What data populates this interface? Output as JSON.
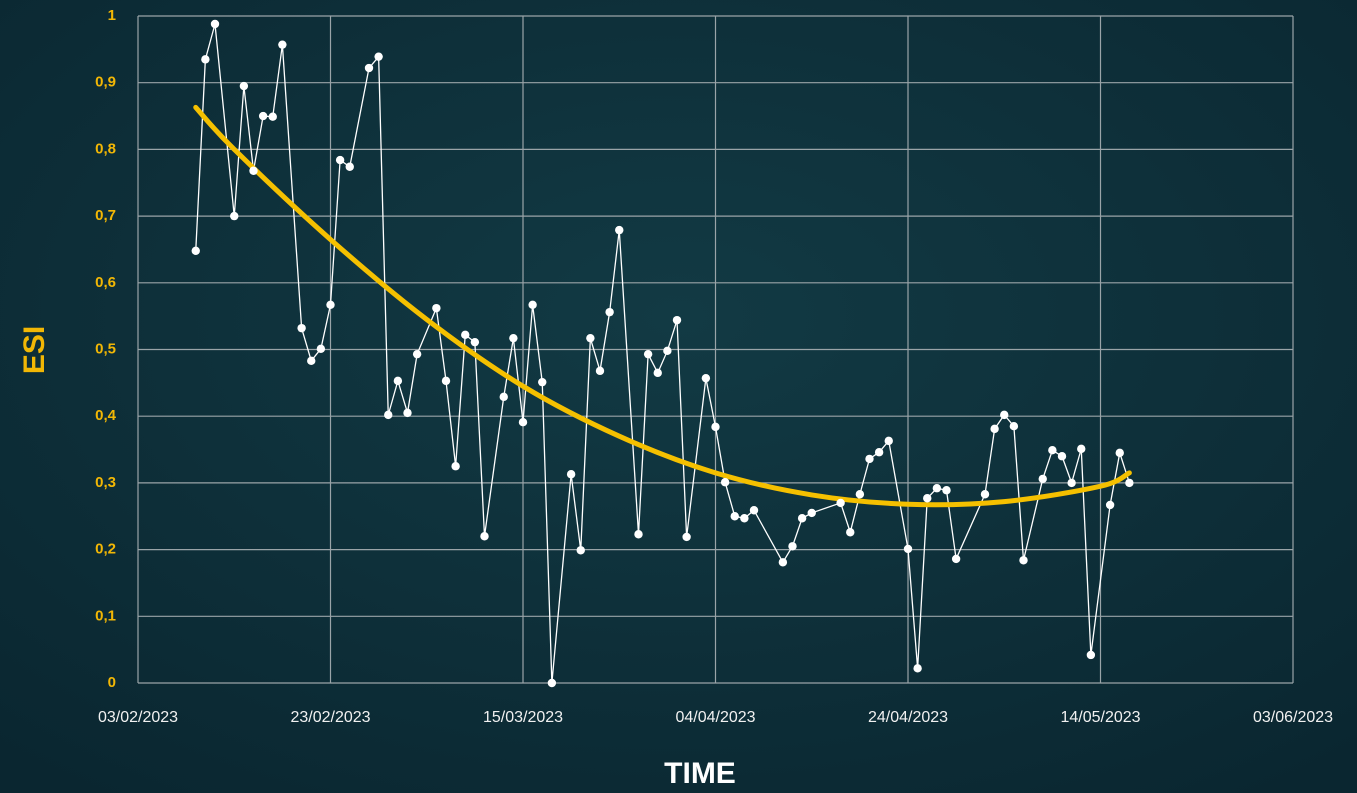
{
  "chart_data": {
    "type": "line",
    "x_label": "TIME",
    "y_label": "ESI",
    "xlim": [
      "03/02/2023",
      "03/06/2023"
    ],
    "xticks": [
      "03/02/2023",
      "23/02/2023",
      "15/03/2023",
      "04/04/2023",
      "24/04/2023",
      "14/05/2023",
      "03/06/2023"
    ],
    "ylim": [
      0,
      1
    ],
    "yticks": [
      0,
      {
        "value": 0.1,
        "label": "0,1"
      },
      {
        "value": 0.2,
        "label": "0,2"
      },
      {
        "value": 0.3,
        "label": "0,3"
      },
      {
        "value": 0.4,
        "label": "0,4"
      },
      {
        "value": 0.5,
        "label": "0,5"
      },
      {
        "value": 0.6,
        "label": "0,6"
      },
      {
        "value": 0.7,
        "label": "0,7"
      },
      {
        "value": 0.8,
        "label": "0,8"
      },
      {
        "value": 0.9,
        "label": "0,9"
      },
      1
    ],
    "grid": true,
    "x": [
      "09/02/2023",
      "10/02/2023",
      "11/02/2023",
      "13/02/2023",
      "14/02/2023",
      "15/02/2023",
      "16/02/2023",
      "17/02/2023",
      "18/02/2023",
      "20/02/2023",
      "21/02/2023",
      "22/02/2023",
      "23/02/2023",
      "24/02/2023",
      "25/02/2023",
      "27/02/2023",
      "28/02/2023",
      "01/03/2023",
      "02/03/2023",
      "03/03/2023",
      "04/03/2023",
      "06/03/2023",
      "07/03/2023",
      "08/03/2023",
      "09/03/2023",
      "10/03/2023",
      "11/03/2023",
      "13/03/2023",
      "14/03/2023",
      "15/03/2023",
      "16/03/2023",
      "17/03/2023",
      "18/03/2023",
      "20/03/2023",
      "21/03/2023",
      "22/03/2023",
      "23/03/2023",
      "24/03/2023",
      "25/03/2023",
      "27/03/2023",
      "28/03/2023",
      "29/03/2023",
      "30/03/2023",
      "31/03/2023",
      "01/04/2023",
      "03/04/2023",
      "04/04/2023",
      "05/04/2023",
      "06/04/2023",
      "07/04/2023",
      "08/04/2023",
      "11/04/2023",
      "12/04/2023",
      "13/04/2023",
      "14/04/2023",
      "17/04/2023",
      "18/04/2023",
      "19/04/2023",
      "20/04/2023",
      "21/04/2023",
      "22/04/2023",
      "24/04/2023",
      "25/04/2023",
      "26/04/2023",
      "27/04/2023",
      "28/04/2023",
      "29/04/2023",
      "02/05/2023",
      "03/05/2023",
      "04/05/2023",
      "05/05/2023",
      "06/05/2023",
      "08/05/2023",
      "09/05/2023",
      "10/05/2023",
      "11/05/2023",
      "12/05/2023",
      "13/05/2023",
      "15/05/2023",
      "16/05/2023",
      "17/05/2023"
    ],
    "series": [
      {
        "color": "#ffffff",
        "values": [
          0.648,
          0.935,
          0.988,
          0.7,
          0.895,
          0.768,
          0.85,
          0.849,
          0.957,
          0.532,
          0.483,
          0.501,
          0.567,
          0.784,
          0.774,
          0.922,
          0.939,
          0.402,
          0.453,
          0.405,
          0.493,
          0.562,
          0.453,
          0.325,
          0.522,
          0.511,
          0.22,
          0.429,
          0.517,
          0.391,
          0.567,
          0.451,
          0.0,
          0.313,
          0.199,
          0.517,
          0.468,
          0.556,
          0.679,
          0.223,
          0.493,
          0.465,
          0.498,
          0.544,
          0.219,
          0.457,
          0.384,
          0.301,
          0.25,
          0.247,
          0.259,
          0.181,
          0.205,
          0.247,
          0.255,
          0.27,
          0.226,
          0.283,
          0.336,
          0.346,
          0.363,
          0.201,
          0.022,
          0.277,
          0.292,
          0.289,
          0.186,
          0.283,
          0.381,
          0.402,
          0.385,
          0.184,
          0.306,
          0.349,
          0.34,
          0.3,
          0.351,
          0.042,
          0.267,
          0.345,
          0.3
        ]
      }
    ],
    "trend": {
      "color": "#f5c000",
      "x": [
        "09/02/2023",
        "13/02/2023",
        "23/02/2023",
        "05/03/2023",
        "15/03/2023",
        "25/03/2023",
        "04/04/2023",
        "14/04/2023",
        "24/04/2023",
        "04/05/2023",
        "14/05/2023",
        "17/05/2023"
      ],
      "values": [
        0.863,
        0.8,
        0.665,
        0.545,
        0.445,
        0.37,
        0.315,
        0.282,
        0.268,
        0.272,
        0.295,
        0.315
      ]
    }
  }
}
